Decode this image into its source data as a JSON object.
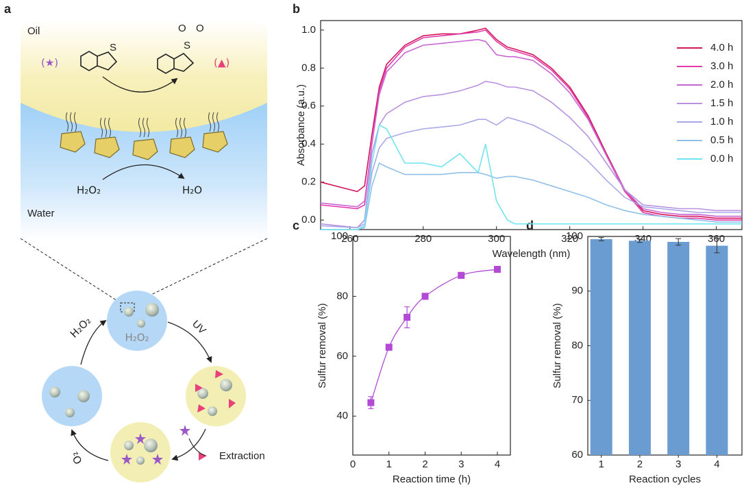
{
  "panel_labels": [
    "a",
    "b",
    "c",
    "d"
  ],
  "diagram": {
    "oil": "Oil",
    "water": "Water",
    "reactant_marker": "(★)",
    "product_marker": "(▲)",
    "sulfur_atoms": [
      "S",
      "S"
    ],
    "oxygen_atoms": [
      "O",
      "O"
    ],
    "oxidant": "H₂O₂",
    "product_water": "H₂O",
    "droplet_content": "H₂O₂",
    "cycle_labels": {
      "h2o2": "H₂O₂",
      "uv": "UV",
      "o2": "O₂",
      "extraction": "Extraction"
    }
  },
  "chart_data": [
    {
      "type": "line",
      "xlabel": "Wavelength (nm)",
      "ylabel": "Absorbance (a.u.)",
      "x": [
        252,
        262,
        264,
        266,
        268,
        270,
        275,
        280,
        285,
        290,
        295,
        297,
        300,
        303,
        305,
        310,
        315,
        320,
        325,
        330,
        335,
        340,
        345,
        350,
        355,
        360,
        367
      ],
      "series": [
        {
          "name": "4.0 h",
          "color": "#d4145a",
          "values": [
            0.2,
            0.15,
            0.18,
            0.45,
            0.7,
            0.82,
            0.92,
            0.97,
            0.98,
            0.98,
            1.0,
            1.01,
            0.95,
            0.91,
            0.9,
            0.87,
            0.8,
            0.7,
            0.55,
            0.35,
            0.16,
            0.05,
            0.03,
            0.02,
            0.02,
            0.01,
            0.01
          ]
        },
        {
          "name": "3.0 h",
          "color": "#e03aa8",
          "values": [
            0.08,
            0.06,
            0.08,
            0.4,
            0.68,
            0.8,
            0.91,
            0.96,
            0.97,
            0.98,
            0.99,
            1.0,
            0.94,
            0.9,
            0.89,
            0.86,
            0.79,
            0.69,
            0.54,
            0.34,
            0.15,
            0.04,
            0.02,
            0.01,
            0.01,
            0.0,
            0.0
          ]
        },
        {
          "name": "2.0 h",
          "color": "#c865d5",
          "values": [
            0.09,
            0.07,
            0.1,
            0.4,
            0.66,
            0.78,
            0.88,
            0.92,
            0.93,
            0.94,
            0.95,
            0.94,
            0.87,
            0.86,
            0.86,
            0.84,
            0.77,
            0.67,
            0.53,
            0.34,
            0.16,
            0.06,
            0.04,
            0.03,
            0.03,
            0.02,
            0.02
          ]
        },
        {
          "name": "1.5 h",
          "color": "#b890e0",
          "values": [
            -0.02,
            -0.04,
            0.0,
            0.35,
            0.5,
            0.56,
            0.62,
            0.65,
            0.66,
            0.68,
            0.71,
            0.73,
            0.72,
            0.7,
            0.7,
            0.68,
            0.62,
            0.54,
            0.44,
            0.3,
            0.16,
            0.08,
            0.07,
            0.06,
            0.06,
            0.05,
            0.05
          ]
        },
        {
          "name": "1.0 h",
          "color": "#a8a8e8",
          "values": [
            -0.03,
            -0.04,
            -0.02,
            0.25,
            0.38,
            0.43,
            0.46,
            0.48,
            0.49,
            0.5,
            0.53,
            0.53,
            0.5,
            0.54,
            0.53,
            0.5,
            0.45,
            0.39,
            0.31,
            0.21,
            0.12,
            0.07,
            0.06,
            0.05,
            0.04,
            0.04,
            0.04
          ]
        },
        {
          "name": "0.5 h",
          "color": "#90c0e8",
          "values": [
            -0.05,
            -0.05,
            -0.04,
            0.18,
            0.3,
            0.28,
            0.24,
            0.24,
            0.24,
            0.25,
            0.25,
            0.24,
            0.22,
            0.23,
            0.23,
            0.21,
            0.18,
            0.15,
            0.12,
            0.08,
            0.05,
            0.03,
            0.02,
            0.01,
            0.0,
            -0.01,
            -0.01
          ]
        },
        {
          "name": "0.0 h",
          "color": "#70e4f0",
          "values": [
            -0.05,
            -0.05,
            -0.03,
            0.3,
            0.5,
            0.48,
            0.3,
            0.3,
            0.28,
            0.35,
            0.25,
            0.4,
            0.1,
            0.0,
            -0.02,
            -0.02,
            -0.02,
            -0.02,
            -0.02,
            -0.02,
            -0.02,
            -0.02,
            -0.02,
            -0.02,
            -0.02,
            -0.02,
            -0.02
          ]
        }
      ],
      "xlim": [
        252,
        367
      ],
      "xticks": [
        260,
        280,
        300,
        320,
        340,
        360
      ],
      "ylim": [
        -0.05,
        1.05
      ],
      "yticks": [
        {
          "value": 0,
          "label": "0.0"
        },
        0.2,
        0.4,
        0.6,
        0.8,
        {
          "value": 1,
          "label": "1.0"
        }
      ],
      "legend": "upper right"
    },
    {
      "type": "scatter",
      "xlabel": "Reaction time (h)",
      "ylabel": "Sulfur removal (%)",
      "x": [
        0.5,
        1,
        1.5,
        2,
        3,
        4
      ],
      "values": [
        44.5,
        63,
        73,
        80,
        87,
        89
      ],
      "errors": [
        2,
        1,
        3.5,
        1,
        1,
        1
      ],
      "color": "#b24ad6",
      "line": true,
      "xlim": [
        0,
        4.36
      ],
      "xticks": [
        0,
        1,
        2,
        3,
        4
      ],
      "ylim": [
        27,
        100
      ],
      "yticks": [
        40,
        60,
        80,
        100
      ]
    },
    {
      "type": "bar",
      "xlabel": "Reaction cycles",
      "ylabel": "Sulfur removal (%)",
      "categories": [
        "1",
        "2",
        "3",
        "4"
      ],
      "values": [
        99.5,
        99.2,
        99.0,
        98.3
      ],
      "errors": [
        0.3,
        0.3,
        0.6,
        1.3
      ],
      "color": "#6a9bd1",
      "ylim": [
        60,
        100
      ],
      "yticks": [
        60,
        70,
        80,
        90,
        100
      ]
    }
  ]
}
